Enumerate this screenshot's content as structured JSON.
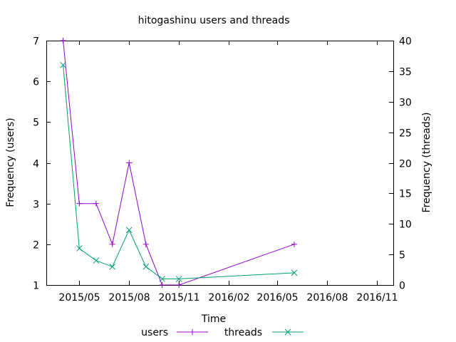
{
  "chart_data": {
    "type": "line",
    "title": "hitogashinu users and threads",
    "xlabel": "Time",
    "ylabel_left": "Frequency (users)",
    "ylabel_right": "Frequency (threads)",
    "x_ticks": [
      "2015/05",
      "2015/08",
      "2015/11",
      "2016/02",
      "2016/05",
      "2016/08",
      "2016/11"
    ],
    "x_tick_dates": [
      "2015-05-01",
      "2015-08-01",
      "2015-11-01",
      "2016-02-01",
      "2016-05-01",
      "2016-08-01",
      "2016-11-01"
    ],
    "xlim": [
      "2015-03-01",
      "2016-12-01"
    ],
    "ylim_left": [
      1,
      7
    ],
    "ylim_right": [
      0,
      40
    ],
    "y_ticks_left": [
      1,
      2,
      3,
      4,
      5,
      6,
      7
    ],
    "y_ticks_right": [
      0,
      5,
      10,
      15,
      20,
      25,
      30,
      35,
      40
    ],
    "legend_position": "bottom",
    "series": [
      {
        "name": "users",
        "axis": "left",
        "marker": "+",
        "color": "#9400d3",
        "x": [
          "2015-04-01",
          "2015-05-01",
          "2015-06-01",
          "2015-07-01",
          "2015-08-01",
          "2015-09-01",
          "2015-10-01",
          "2015-11-01",
          "2016-06-01"
        ],
        "y": [
          7,
          3,
          3,
          2,
          4,
          2,
          1,
          1,
          2
        ]
      },
      {
        "name": "threads",
        "axis": "right",
        "marker": "x",
        "color": "#009e73",
        "x": [
          "2015-04-01",
          "2015-05-01",
          "2015-06-01",
          "2015-07-01",
          "2015-08-01",
          "2015-09-01",
          "2015-10-01",
          "2015-11-01",
          "2016-06-01"
        ],
        "y": [
          36,
          6,
          4,
          3,
          9,
          3,
          1,
          1,
          2
        ]
      }
    ]
  }
}
